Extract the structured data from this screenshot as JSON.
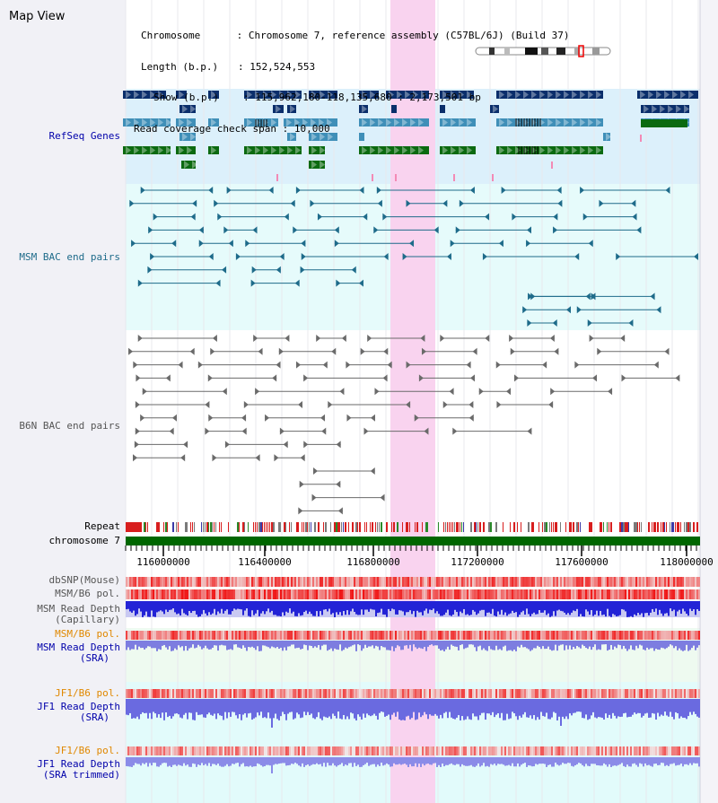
{
  "view_title": "Map View",
  "header": {
    "chromosome_key": "Chromosome",
    "chromosome_value": "Chromosome 7, reference assembly (C57BL/6J) (Build 37)",
    "length_key": "Length (b.p.)",
    "length_value": "152,524,553",
    "show_key": "Show (b.p.)",
    "show_value": "115,962,180-118,135,680 : 2,173,501 bp",
    "span_key": "Read coverage check span",
    "span_value": "10,000"
  },
  "tracks": {
    "refseq": "RefSeq Genes",
    "msm_bac": "MSM BAC end pairs",
    "b6n_bac": "B6N BAC end pairs",
    "repeat": "Repeat",
    "chromosome": "chromosome 7",
    "dbsnp": "dbSNP(Mouse)",
    "msm_b6_pol_1": "MSM/B6 pol.",
    "msm_depth_cap_1": "MSM Read Depth",
    "msm_depth_cap_2": "(Capillary)",
    "msm_b6_pol_2": "MSM/B6 pol.",
    "msm_depth_sra_1": "MSM Read Depth",
    "msm_depth_sra_2": "(SRA)",
    "jf1_b6_pol_1": "JF1/B6 pol.",
    "jf1_depth_sra_1": "JF1 Read Depth",
    "jf1_depth_sra_2": "(SRA)",
    "jf1_b6_pol_2": "JF1/B6 pol.",
    "jf1_depth_trim_1": "JF1 Read Depth",
    "jf1_depth_trim_2": "(SRA trimmed)"
  },
  "axis": {
    "ticks": [
      "116000000",
      "116400000",
      "116800000",
      "117200000",
      "117600000",
      "118000000"
    ]
  },
  "colors": {
    "highlight": "#f9d3ef",
    "refseq_band": "#dcf0fb",
    "msm_band": "#e6fbfb",
    "b6n_band": "#ffffff",
    "msm_sra_band": "#eefaf0",
    "jf1_band": "#e2fbfb",
    "gene_dark": "#0a2e6b",
    "gene_mid": "#3f8fb8",
    "gene_green": "#0b6a10",
    "bac_msm": "#1e6b8a",
    "bac_b6n": "#6a6a6a",
    "chromosome_bar": "#006600",
    "label_blue": "#0000aa",
    "label_teal": "#1e6b8a",
    "label_gray": "#555555",
    "label_orange": "#e08800"
  }
}
